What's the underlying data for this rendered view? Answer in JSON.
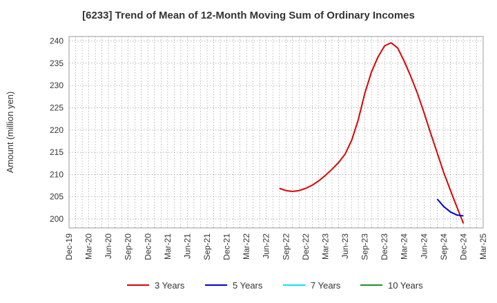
{
  "chart_data": {
    "type": "line",
    "title": "[6233]  Trend of Mean of 12-Month Moving Sum of Ordinary Incomes",
    "xlabel": "",
    "ylabel": "Amount (million yen)",
    "ylim": [
      198,
      241
    ],
    "yticks": [
      200,
      205,
      210,
      215,
      220,
      225,
      230,
      235,
      240
    ],
    "xticks": [
      "Dec-19",
      "Mar-20",
      "Jun-20",
      "Sep-20",
      "Dec-20",
      "Mar-21",
      "Jun-21",
      "Sep-21",
      "Dec-21",
      "Mar-22",
      "Jun-22",
      "Sep-22",
      "Dec-22",
      "Mar-23",
      "Jun-23",
      "Sep-23",
      "Dec-23",
      "Mar-24",
      "Jun-24",
      "Sep-24",
      "Dec-24",
      "Mar-25"
    ],
    "grid": true,
    "legend_position": "bottom",
    "series": [
      {
        "name": "3 Years",
        "color": "#dd0000",
        "x": [
          "Aug-22",
          "Sep-22",
          "Oct-22",
          "Nov-22",
          "Dec-22",
          "Jan-23",
          "Feb-23",
          "Mar-23",
          "Apr-23",
          "May-23",
          "Jun-23",
          "Jul-23",
          "Aug-23",
          "Sep-23",
          "Oct-23",
          "Nov-23",
          "Dec-23",
          "Jan-24",
          "Feb-24",
          "Mar-24",
          "Apr-24",
          "May-24",
          "Jun-24",
          "Jul-24",
          "Aug-24",
          "Sep-24",
          "Oct-24",
          "Nov-24",
          "Dec-24"
        ],
        "values": [
          206.9,
          206.4,
          206.2,
          206.4,
          206.9,
          207.6,
          208.6,
          209.8,
          211.2,
          212.7,
          214.6,
          217.7,
          222.3,
          228.3,
          233.0,
          236.4,
          238.9,
          239.6,
          238.4,
          235.4,
          232.0,
          228.2,
          223.9,
          219.3,
          214.9,
          210.4,
          206.5,
          202.7,
          199.0
        ]
      },
      {
        "name": "5 Years",
        "color": "#0000cc",
        "x": [
          "Aug-24",
          "Sep-24",
          "Oct-24",
          "Nov-24",
          "Dec-24"
        ],
        "values": [
          204.5,
          202.8,
          201.6,
          200.9,
          200.7
        ]
      },
      {
        "name": "7 Years",
        "color": "#00e5ee",
        "x": [],
        "values": []
      },
      {
        "name": "10 Years",
        "color": "#228b22",
        "x": [],
        "values": []
      }
    ]
  }
}
